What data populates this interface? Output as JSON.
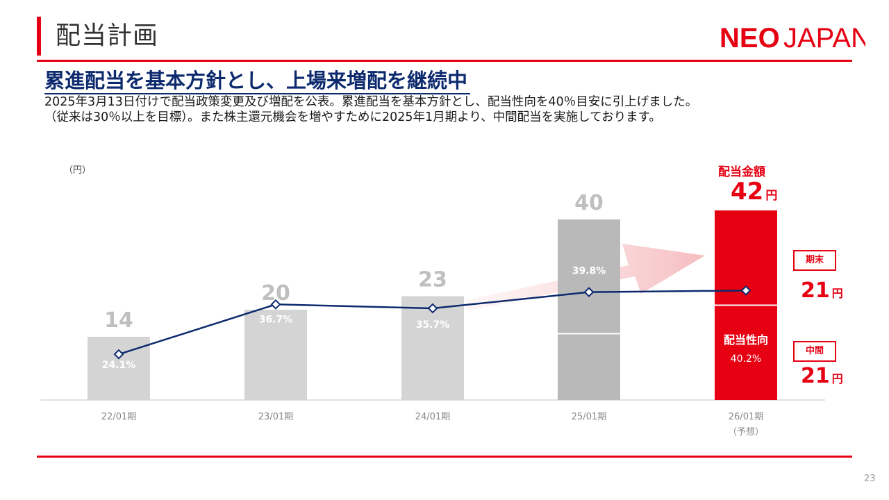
{
  "page": {
    "title": "配当計画",
    "logo_text_neo": "NEO",
    "logo_text_japan": "JAPAN",
    "headline": "累進配当を基本方針とし、上場来増配を継続中",
    "lead_lines": [
      "2025年3月13日付けで配当政策変更及び増配を公表。累進配当を基本方針とし、配当性向を40％目安に引上げました。",
      "（従来は30％以上を目標）。また株主還元機会を増やすために2025年1月期より、中間配当を実施しております。"
    ],
    "page_number": "23"
  },
  "colors": {
    "accent_red": "#e60012",
    "navy": "#0d2a6e",
    "bar_gray": "#d4d4d4",
    "bar_gray_dark": "#b9b9b9",
    "value_gray": "#bfbfbf"
  },
  "chart_data": {
    "type": "bar",
    "unit_label": "（円）",
    "categories": [
      "22/01期",
      "23/01期",
      "24/01期",
      "25/01期",
      "26/01期"
    ],
    "category_notes": [
      "",
      "",
      "",
      "",
      "（予想）"
    ],
    "series": [
      {
        "values": [
          14,
          20,
          23,
          40,
          42
        ]
      },
      {
        "values": [
          24.1,
          36.7,
          35.7,
          39.8,
          40.2
        ]
      }
    ],
    "payout_labels": [
      "24.1%",
      "36.7%",
      "35.7%",
      "39.8%",
      "40.2%"
    ],
    "value_labels": [
      "14",
      "20",
      "23",
      "40"
    ],
    "split_bar_25": {
      "interim": 21,
      "year_end": 19
    },
    "forecast": {
      "total_label": "配当金額",
      "total_value": "42",
      "yen": "円",
      "payout_caption": "配当性向",
      "year_end_tag": "期末",
      "year_end_value": "21",
      "interim_tag": "中間",
      "interim_value": "21"
    }
  }
}
